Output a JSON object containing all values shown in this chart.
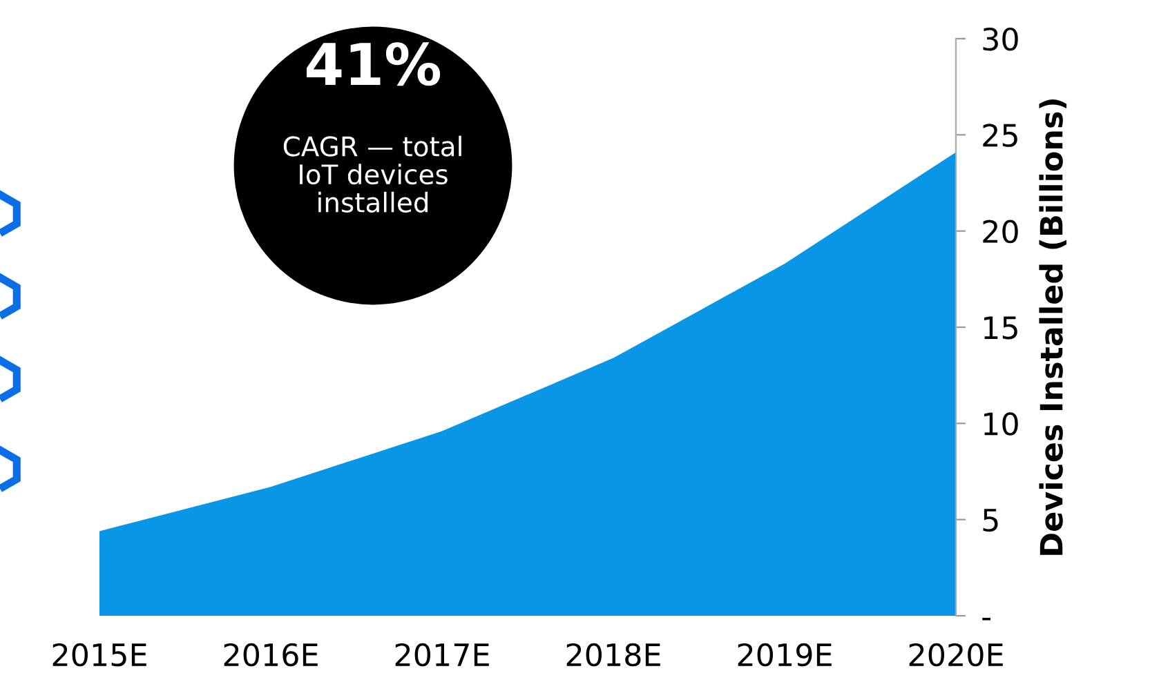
{
  "chart_data": {
    "type": "area",
    "ylabel": "Devices Installed (Billions)",
    "categories": [
      "2015E",
      "2016E",
      "2017E",
      "2018E",
      "2019E",
      "2020E"
    ],
    "series": [
      {
        "color": "#0a96e6",
        "values": [
          4.4,
          6.7,
          9.6,
          13.4,
          18.3,
          24.1
        ]
      }
    ],
    "ylim": [
      0,
      30
    ],
    "yticks": [
      {
        "value": 0,
        "label": "-"
      },
      5,
      10,
      15,
      20,
      25,
      30
    ],
    "grid": false,
    "legend": false,
    "annotations": [
      "41%",
      "CAGR — total\nIoT devices\ninstalled"
    ]
  }
}
